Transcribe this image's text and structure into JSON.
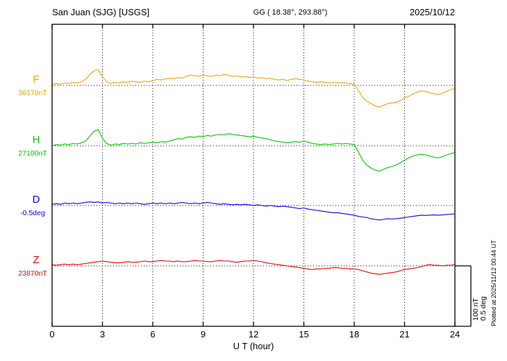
{
  "header": {
    "station": "San Juan (SJG)  [USGS]",
    "coords": "GG ( 18.38°, 293.88°)",
    "date": "2025/10/12"
  },
  "x_axis": {
    "label": "U T (hour)",
    "min": 0,
    "max": 24,
    "ticks": [
      0,
      3,
      6,
      9,
      12,
      15,
      18,
      21,
      24
    ]
  },
  "scale_bar": {
    "line1": "100 nT",
    "line2": "0.5 deg"
  },
  "plotted_note": "Plotted at 2025/11/12 00:44 UT",
  "chart_data": {
    "type": "line",
    "title": "San Juan (SJG) [USGS] magnetogram 2025/10/12",
    "xlabel": "U T (hour)",
    "x_range": [
      0,
      24
    ],
    "grid": "dotted vertical lines every 3 hours, dotted horizontal baseline per channel",
    "values_are": "offset from channel baseline, sampled every 0.25 hour",
    "scale": {
      "nT_per_division": 100,
      "deg_per_division": 0.5
    },
    "series": [
      {
        "name": "F",
        "unit": "nT",
        "baseline_label": "36170nT",
        "baseline_value": 36170,
        "per_division": 100,
        "color": "#f5a000",
        "step": 0.25,
        "values": [
          2,
          3,
          2,
          4,
          3,
          5,
          4,
          6,
          10,
          18,
          24,
          26,
          14,
          6,
          3,
          5,
          4,
          6,
          5,
          7,
          6,
          5,
          7,
          6,
          8,
          10,
          9,
          11,
          12,
          11,
          13,
          12,
          15,
          17,
          16,
          15,
          17,
          16,
          15,
          17,
          16,
          18,
          17,
          15,
          16,
          14,
          15,
          13,
          14,
          12,
          13,
          11,
          12,
          10,
          9,
          10,
          8,
          10,
          11,
          10,
          9,
          7,
          6,
          5,
          6,
          5,
          4,
          5,
          4,
          5,
          4,
          3,
          2,
          -8,
          -20,
          -26,
          -30,
          -34,
          -36,
          -33,
          -30,
          -29,
          -28,
          -25,
          -21,
          -18,
          -14,
          -11,
          -9,
          -10,
          -12,
          -14,
          -15,
          -13,
          -10,
          -7,
          -5
        ]
      },
      {
        "name": "H",
        "unit": "nT",
        "baseline_label": "27100nT",
        "baseline_value": 27100,
        "per_division": 100,
        "color": "#00c400",
        "step": 0.25,
        "values": [
          0,
          2,
          1,
          3,
          2,
          4,
          3,
          5,
          8,
          16,
          24,
          27,
          12,
          4,
          1,
          3,
          2,
          4,
          3,
          4,
          3,
          5,
          4,
          5,
          6,
          5,
          7,
          6,
          8,
          10,
          12,
          11,
          14,
          15,
          14,
          16,
          15,
          17,
          16,
          18,
          19,
          18,
          20,
          19,
          18,
          17,
          16,
          15,
          16,
          14,
          13,
          12,
          10,
          8,
          7,
          6,
          5,
          6,
          7,
          6,
          8,
          6,
          4,
          3,
          2,
          3,
          2,
          3,
          4,
          3,
          4,
          3,
          2,
          -10,
          -24,
          -32,
          -37,
          -40,
          -42,
          -39,
          -36,
          -34,
          -32,
          -28,
          -24,
          -20,
          -17,
          -15,
          -14,
          -15,
          -17,
          -19,
          -20,
          -18,
          -15,
          -13,
          -11
        ]
      },
      {
        "name": "D",
        "unit": "deg",
        "baseline_label": "-0.5deg",
        "baseline_value": -0.5,
        "per_division": 0.5,
        "color": "#0000dc",
        "step": 0.25,
        "values": [
          0.01,
          0.015,
          0.01,
          0.02,
          0.015,
          0.02,
          0.015,
          0.02,
          0.025,
          0.03,
          0.025,
          0.03,
          0.02,
          0.025,
          0.02,
          0.015,
          0.02,
          0.015,
          0.02,
          0.015,
          0.02,
          0.015,
          0.01,
          0.015,
          0.02,
          0.015,
          0.02,
          0.015,
          0.02,
          0.015,
          0.02,
          0.025,
          0.02,
          0.015,
          0.02,
          0.015,
          0.02,
          0.025,
          0.02,
          0.015,
          0.01,
          0.015,
          0.01,
          0.005,
          0.01,
          0.005,
          0.01,
          0.005,
          0,
          0.005,
          0,
          -0.005,
          0,
          -0.005,
          -0.01,
          -0.005,
          -0.01,
          -0.015,
          -0.02,
          -0.025,
          -0.02,
          -0.03,
          -0.035,
          -0.04,
          -0.045,
          -0.05,
          -0.055,
          -0.06,
          -0.06,
          -0.065,
          -0.07,
          -0.075,
          -0.08,
          -0.09,
          -0.095,
          -0.1,
          -0.11,
          -0.115,
          -0.12,
          -0.115,
          -0.11,
          -0.112,
          -0.11,
          -0.105,
          -0.1,
          -0.095,
          -0.09,
          -0.085,
          -0.08,
          -0.082,
          -0.08,
          -0.078,
          -0.08,
          -0.078,
          -0.075,
          -0.072,
          -0.07
        ]
      },
      {
        "name": "Z",
        "unit": "nT",
        "baseline_label": "23870nT",
        "baseline_value": 23870,
        "per_division": 100,
        "color": "#e60000",
        "step": 0.25,
        "values": [
          2,
          1,
          2,
          3,
          2,
          3,
          2,
          3,
          4,
          5,
          6,
          7,
          8,
          7,
          6,
          5,
          5,
          6,
          7,
          6,
          6,
          7,
          8,
          7,
          7,
          8,
          9,
          8,
          8,
          7,
          8,
          7,
          7,
          8,
          9,
          8,
          8,
          7,
          7,
          8,
          9,
          8,
          8,
          7,
          6,
          7,
          8,
          8,
          9,
          8,
          7,
          5,
          4,
          3,
          2,
          1,
          0,
          -1,
          -2,
          -3,
          -4,
          -5,
          -6,
          -5,
          -5,
          -4,
          -4,
          -3,
          -3,
          -4,
          -4,
          -5,
          -5,
          -6,
          -8,
          -10,
          -12,
          -13,
          -14,
          -13,
          -12,
          -11,
          -10,
          -8,
          -6,
          -5,
          -4,
          -3,
          -1,
          1,
          2,
          1,
          1,
          0,
          1,
          1,
          2
        ]
      }
    ]
  }
}
